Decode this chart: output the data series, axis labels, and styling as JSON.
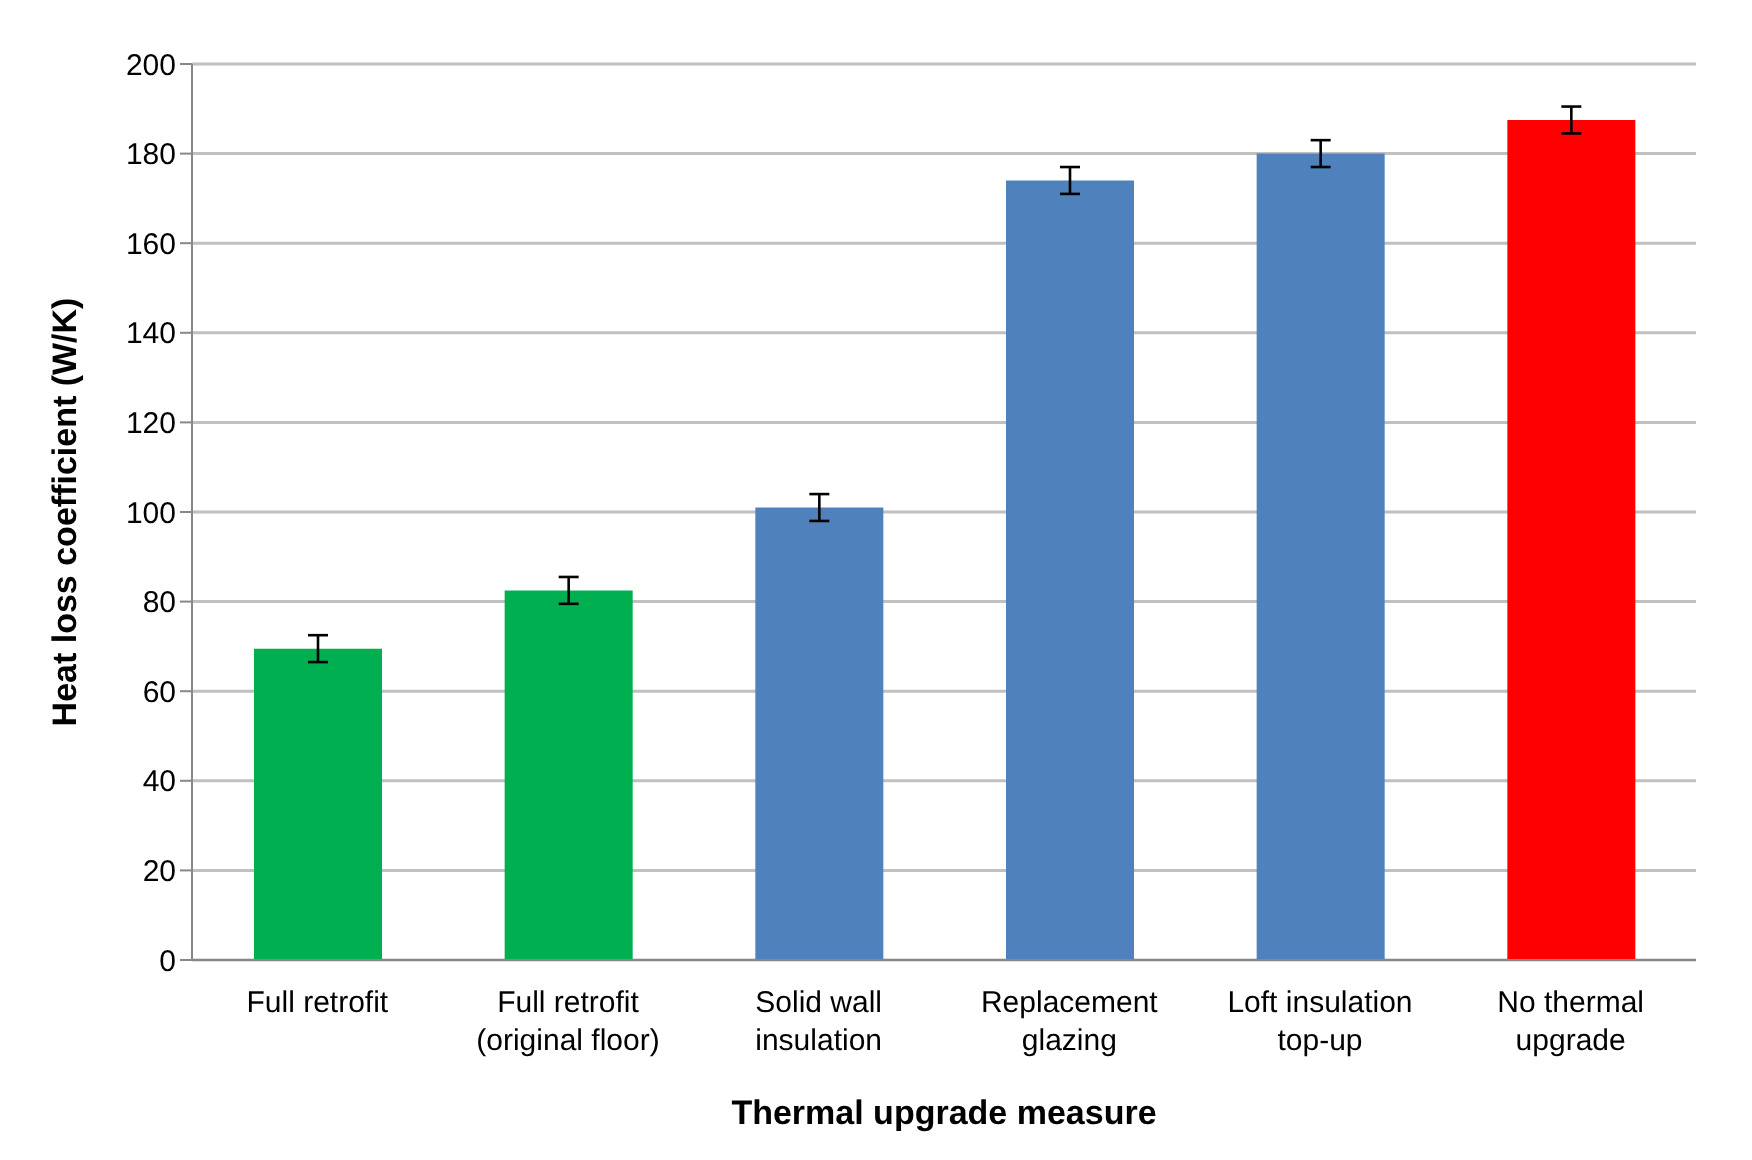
{
  "chart_data": {
    "type": "bar",
    "xlabel": "Thermal upgrade measure",
    "ylabel": "Heat loss coefficient (W/K)",
    "categories": [
      "Full retrofit",
      "Full retrofit (original floor)",
      "Solid wall insulation",
      "Replacement glazing",
      "Loft insulation top-up",
      "No thermal upgrade"
    ],
    "values": [
      69.5,
      82.5,
      101,
      174,
      180,
      187.5
    ],
    "colors": [
      "#00b050",
      "#00b050",
      "#4f81bd",
      "#4f81bd",
      "#4f81bd",
      "#ff0000"
    ],
    "errors": [
      3,
      3,
      3,
      3,
      3,
      3
    ],
    "ylim": [
      0,
      200
    ],
    "yticks": [
      0,
      20,
      40,
      60,
      80,
      100,
      120,
      140,
      160,
      180,
      200
    ],
    "grid": "y"
  }
}
